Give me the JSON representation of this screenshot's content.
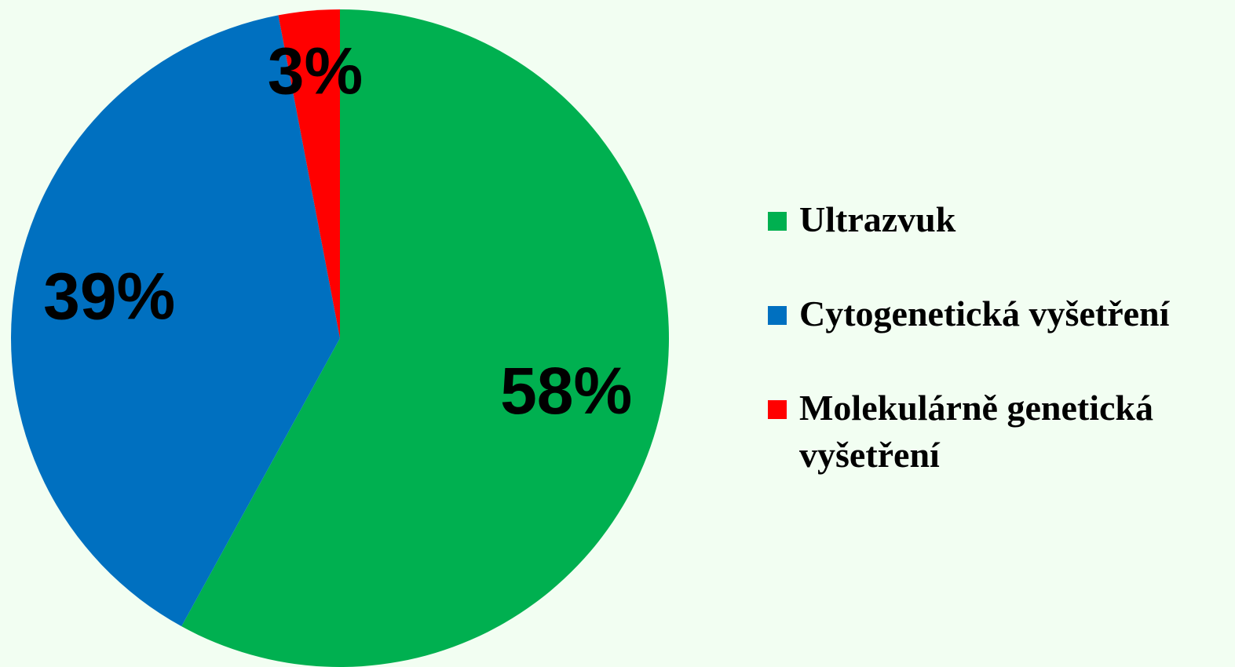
{
  "chart_data": {
    "type": "pie",
    "categories": [
      "Ultrazvuk",
      "Cytogenetická vyšetření",
      "Molekulárně genetická vyšetření"
    ],
    "values": [
      58,
      39,
      3
    ],
    "value_labels": [
      "58%",
      "39%",
      "3%"
    ],
    "colors": [
      "#00b050",
      "#0070c0",
      "#ff0000"
    ],
    "legend": "right"
  }
}
